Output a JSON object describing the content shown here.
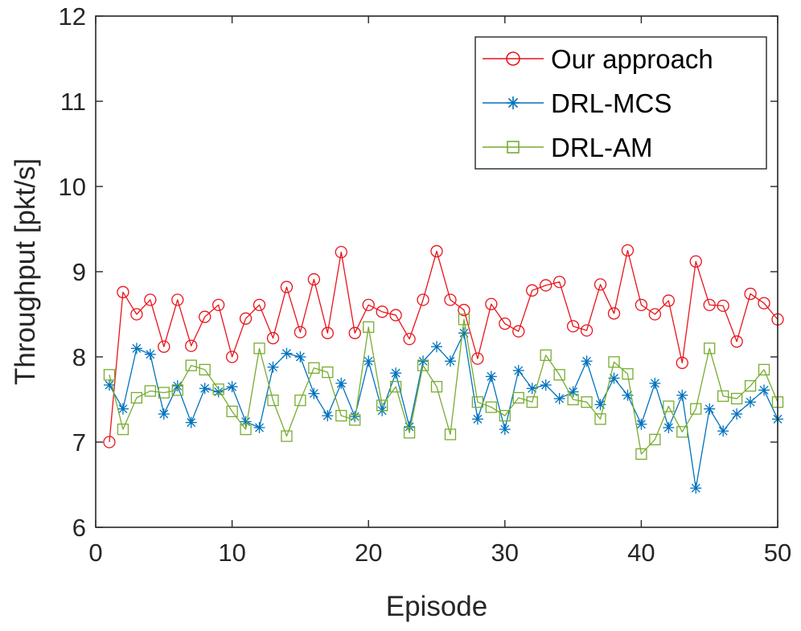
{
  "chart_data": {
    "type": "line",
    "xlabel": "Episode",
    "ylabel": "Throughput [pkt/s]",
    "xlim": [
      0,
      50
    ],
    "ylim": [
      6,
      12
    ],
    "xticks": [
      "0",
      "10",
      "20",
      "30",
      "40",
      "50"
    ],
    "yticks": [
      "6",
      "7",
      "8",
      "9",
      "10",
      "11",
      "12"
    ],
    "grid": false,
    "legend_position": "top-right",
    "x": [
      1,
      2,
      3,
      4,
      5,
      6,
      7,
      8,
      9,
      10,
      11,
      12,
      13,
      14,
      15,
      16,
      17,
      18,
      19,
      20,
      21,
      22,
      23,
      24,
      25,
      26,
      27,
      28,
      29,
      30,
      31,
      32,
      33,
      34,
      35,
      36,
      37,
      38,
      39,
      40,
      41,
      42,
      43,
      44,
      45,
      46,
      47,
      48,
      49,
      50
    ],
    "series": [
      {
        "name": "Our approach",
        "color": "#e8141b",
        "marker": "circle",
        "values": [
          7.0,
          8.76,
          8.5,
          8.67,
          8.12,
          8.67,
          8.13,
          8.47,
          8.61,
          8.0,
          8.45,
          8.61,
          8.22,
          8.82,
          8.29,
          8.91,
          8.28,
          9.23,
          8.28,
          8.61,
          8.53,
          8.49,
          8.21,
          8.67,
          9.24,
          8.67,
          8.55,
          7.98,
          8.62,
          8.39,
          8.3,
          8.78,
          8.84,
          8.88,
          8.36,
          8.31,
          8.85,
          8.51,
          9.25,
          8.61,
          8.5,
          8.66,
          7.93,
          9.12,
          8.61,
          8.6,
          8.18,
          8.74,
          8.63,
          8.44
        ]
      },
      {
        "name": "DRL-MCS",
        "color": "#0072bd",
        "marker": "asterisk",
        "values": [
          7.67,
          7.39,
          8.1,
          8.03,
          7.33,
          7.66,
          7.23,
          7.63,
          7.59,
          7.65,
          7.24,
          7.17,
          7.88,
          8.04,
          8.0,
          7.57,
          7.31,
          7.69,
          7.3,
          7.95,
          7.37,
          7.81,
          7.18,
          7.95,
          8.12,
          7.95,
          8.28,
          7.27,
          7.77,
          7.15,
          7.84,
          7.63,
          7.67,
          7.51,
          7.59,
          7.95,
          7.44,
          7.75,
          7.55,
          7.21,
          7.69,
          7.17,
          7.55,
          6.46,
          7.39,
          7.13,
          7.33,
          7.47,
          7.61,
          7.27
        ]
      },
      {
        "name": "DRL-AM",
        "color": "#77ac30",
        "marker": "square",
        "values": [
          7.79,
          7.15,
          7.52,
          7.6,
          7.58,
          7.61,
          7.9,
          7.85,
          7.62,
          7.36,
          7.15,
          8.1,
          7.49,
          7.07,
          7.49,
          7.87,
          7.82,
          7.31,
          7.26,
          8.35,
          7.43,
          7.65,
          7.11,
          7.9,
          7.65,
          7.09,
          8.44,
          7.47,
          7.41,
          7.31,
          7.52,
          7.47,
          8.02,
          7.79,
          7.5,
          7.47,
          7.27,
          7.94,
          7.8,
          6.86,
          7.03,
          7.42,
          7.12,
          7.39,
          8.1,
          7.54,
          7.51,
          7.66,
          7.85,
          7.47
        ]
      }
    ]
  }
}
